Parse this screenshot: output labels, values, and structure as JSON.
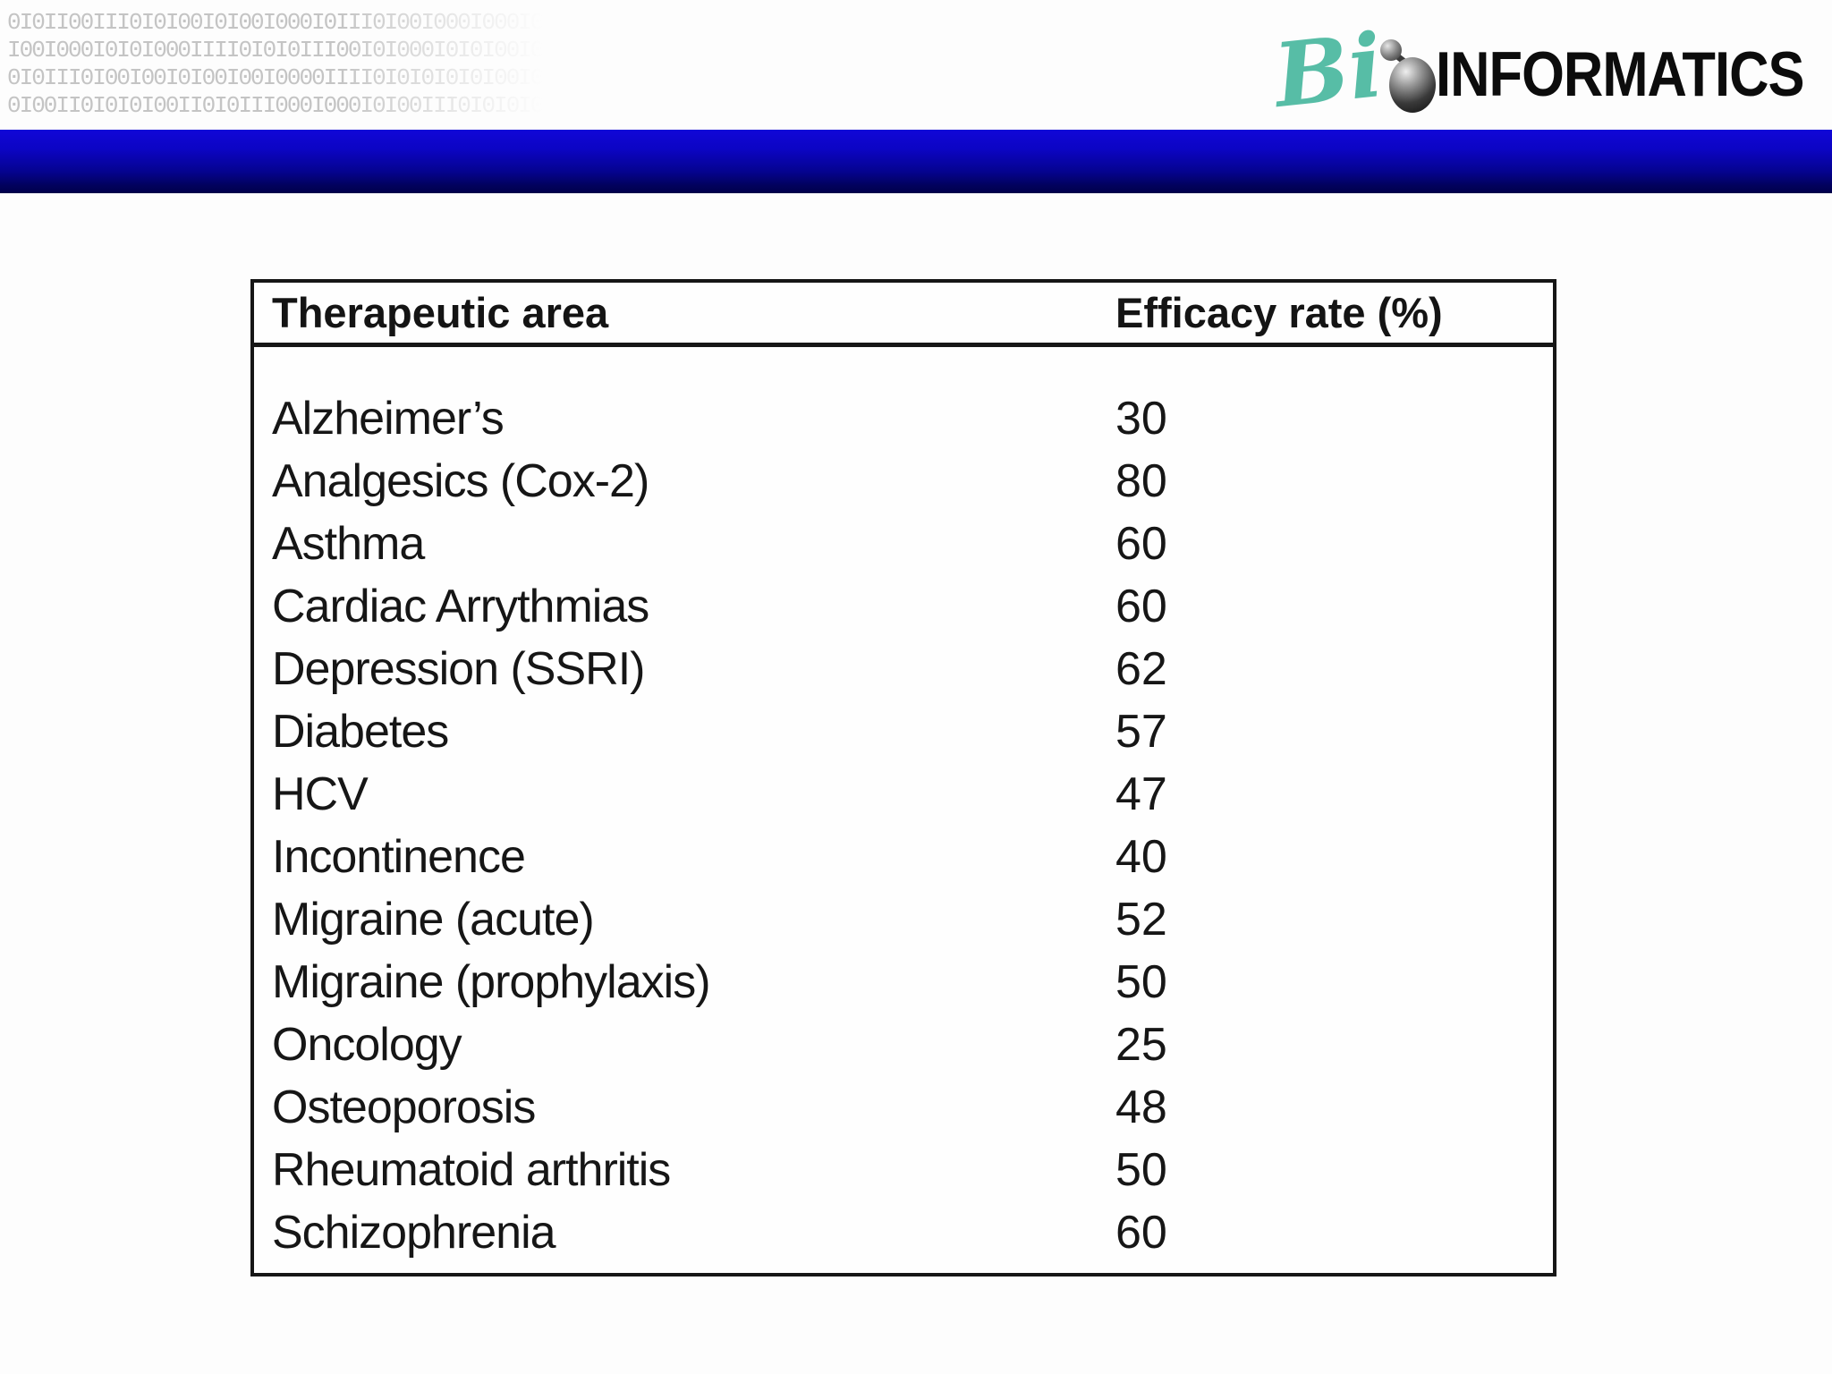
{
  "decoration": {
    "binary_lines": [
      "0I0II00III0I0I00I0I00I000I0III0I00I000I000I0",
      "I00I000I0I0I000IIII0I0I0III00I0I000I0I0I00I0",
      "0I0III0I00I00I0I00I00I0000IIII0I0I0I0I0I00I0",
      "0I00II0I0I0I00II0I0III000I000I0I00III0I0I0I0"
    ]
  },
  "logo": {
    "script_text": "Bi",
    "main_text": "INFORMATICS",
    "accent_color": "#57bda6"
  },
  "divider": {
    "top_color": "#1106d8",
    "bottom_color": "#00004a"
  },
  "table": {
    "headers": {
      "area": "Therapeutic area",
      "rate": "Efficacy rate (%)"
    },
    "rows": [
      {
        "area": "Alzheimer’s",
        "rate": "30"
      },
      {
        "area": "Analgesics (Cox-2)",
        "rate": "80"
      },
      {
        "area": "Asthma",
        "rate": "60"
      },
      {
        "area": "Cardiac Arrythmias",
        "rate": "60"
      },
      {
        "area": "Depression (SSRI)",
        "rate": "62"
      },
      {
        "area": "Diabetes",
        "rate": "57"
      },
      {
        "area": "HCV",
        "rate": "47"
      },
      {
        "area": "Incontinence",
        "rate": "40"
      },
      {
        "area": "Migraine (acute)",
        "rate": "52"
      },
      {
        "area": "Migraine (prophylaxis)",
        "rate": "50"
      },
      {
        "area": "Oncology",
        "rate": "25"
      },
      {
        "area": "Osteoporosis",
        "rate": "48"
      },
      {
        "area": "Rheumatoid arthritis",
        "rate": "50"
      },
      {
        "area": "Schizophrenia",
        "rate": "60"
      }
    ]
  },
  "chart_data": {
    "type": "table",
    "title": "",
    "columns": [
      "Therapeutic area",
      "Efficacy rate (%)"
    ],
    "categories": [
      "Alzheimer’s",
      "Analgesics (Cox-2)",
      "Asthma",
      "Cardiac Arrythmias",
      "Depression (SSRI)",
      "Diabetes",
      "HCV",
      "Incontinence",
      "Migraine (acute)",
      "Migraine (prophylaxis)",
      "Oncology",
      "Osteoporosis",
      "Rheumatoid arthritis",
      "Schizophrenia"
    ],
    "values": [
      30,
      80,
      60,
      60,
      62,
      57,
      47,
      40,
      52,
      50,
      25,
      48,
      50,
      60
    ]
  }
}
